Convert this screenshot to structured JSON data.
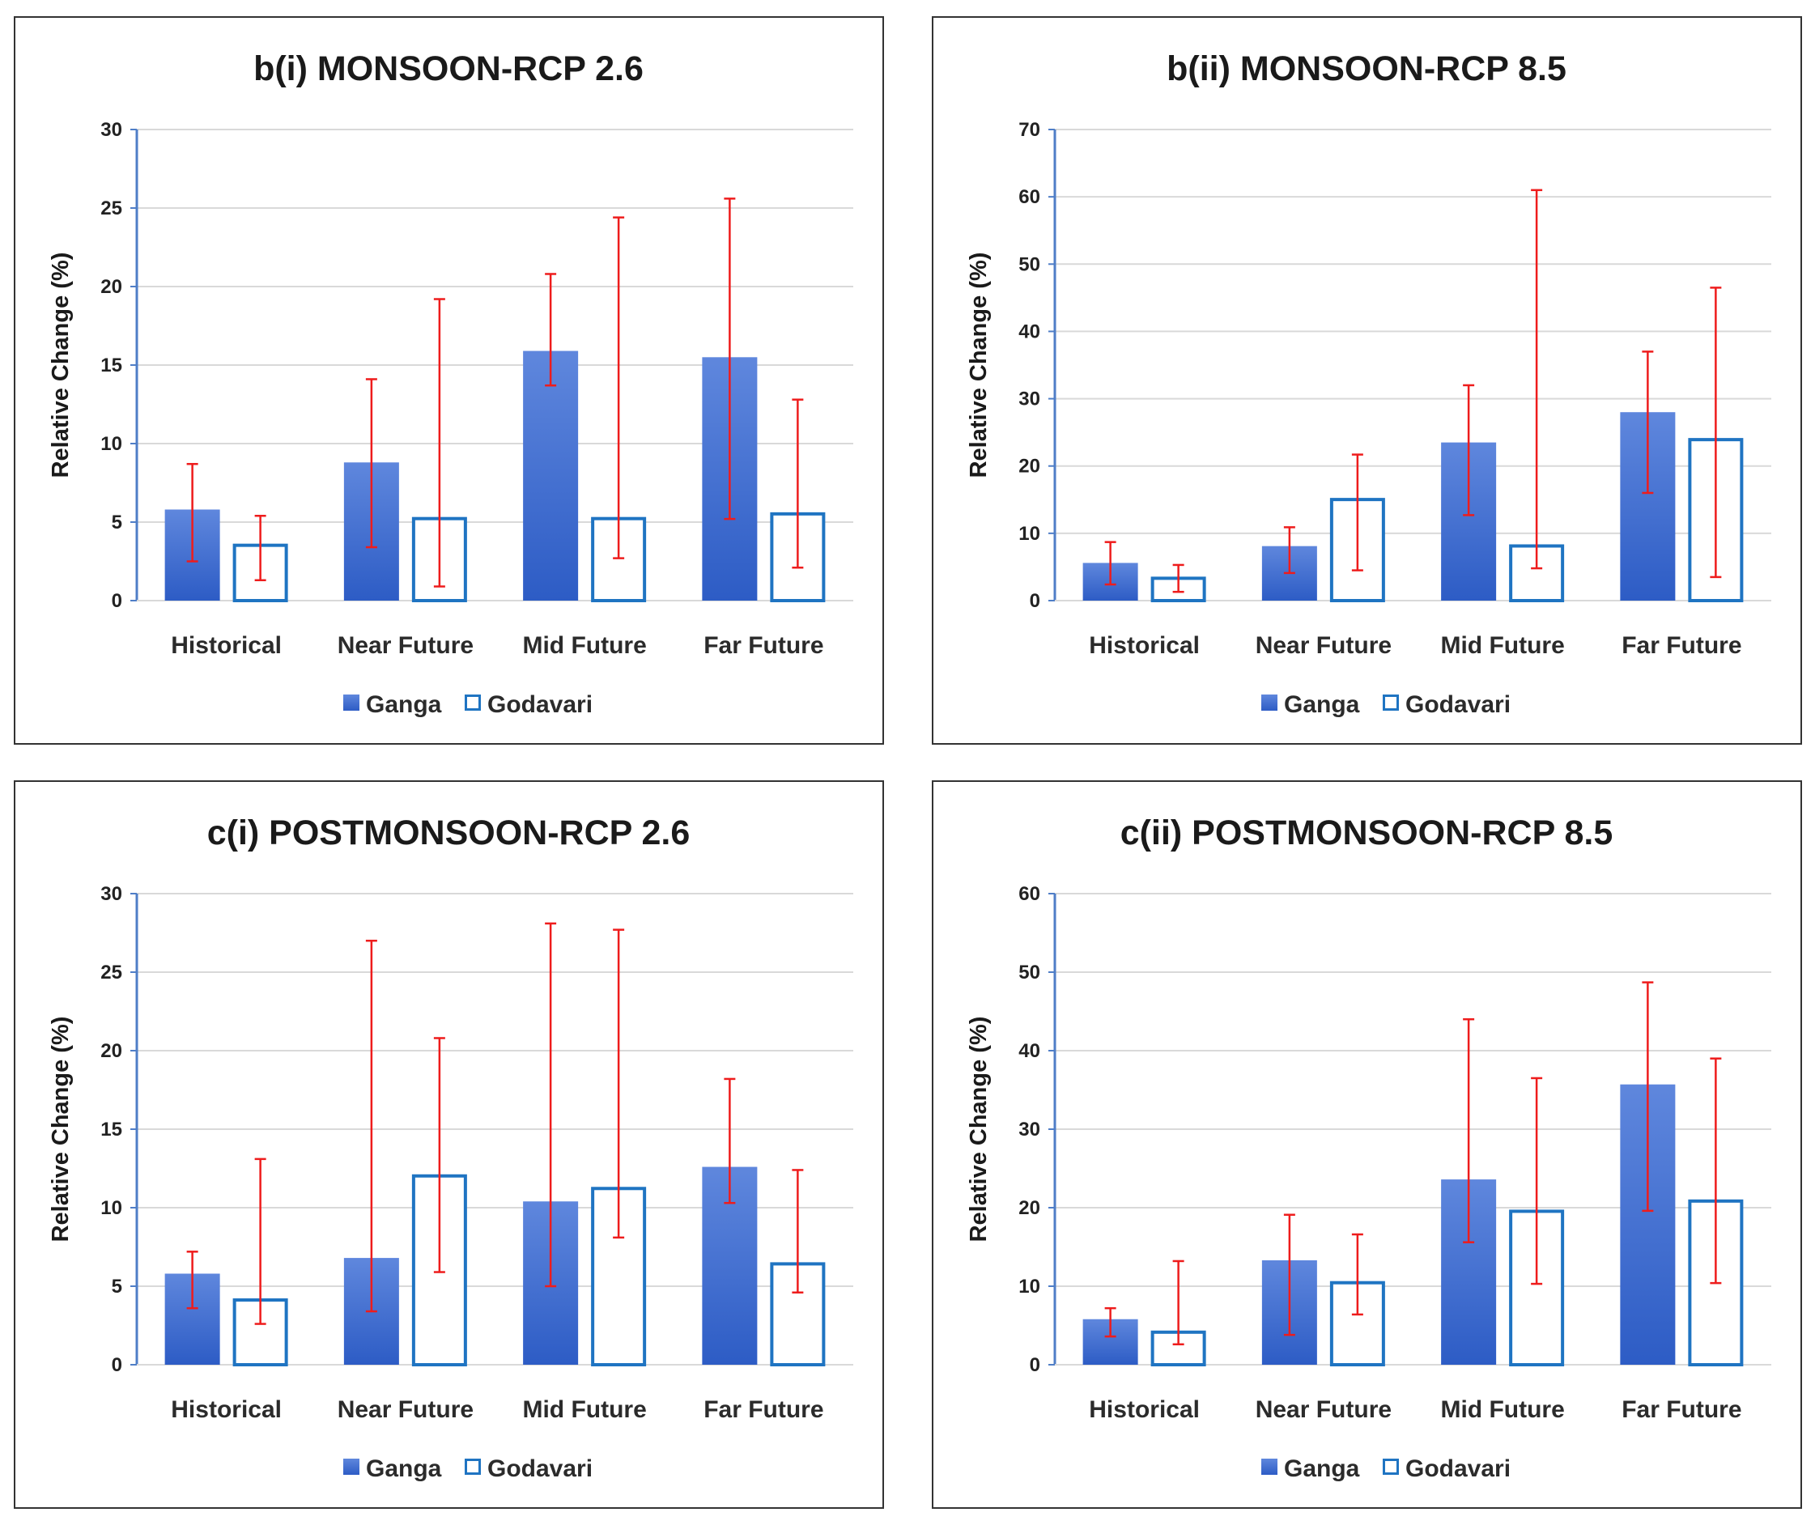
{
  "colors": {
    "ganga_top": "#5f87dd",
    "ganga_bottom": "#2d5cc5",
    "godavari_stroke": "#1f74c2",
    "error_bar": "#ee1c1c",
    "grid": "#d9d9d9",
    "axis": "#4f7ec7"
  },
  "chart_data": [
    {
      "type": "bar",
      "title": "b(i)  MONSOON-RCP 2.6",
      "ylabel": "Relative Change (%)",
      "xlabel": "",
      "ylim": [
        0,
        30
      ],
      "yticks": [
        0,
        5,
        10,
        15,
        20,
        25,
        30
      ],
      "categories": [
        "Historical",
        "Near Future",
        "Mid Future",
        "Far Future"
      ],
      "series": [
        {
          "name": "Ganga",
          "style": "filled",
          "values": [
            5.8,
            8.8,
            15.9,
            15.5
          ],
          "err_low": [
            2.5,
            3.4,
            13.7,
            5.2
          ],
          "err_high": [
            8.7,
            14.1,
            20.8,
            25.6
          ]
        },
        {
          "name": "Godavari",
          "style": "outline",
          "values": [
            3.6,
            5.3,
            5.3,
            5.6
          ],
          "err_low": [
            1.3,
            0.9,
            2.7,
            2.1
          ],
          "err_high": [
            5.4,
            19.2,
            24.4,
            12.8
          ]
        }
      ],
      "legend": [
        "Ganga",
        "Godavari"
      ],
      "legend_position": "bottom",
      "grid": true
    },
    {
      "type": "bar",
      "title": "b(ii)  MONSOON-RCP 8.5",
      "ylabel": "Relative Change (%)",
      "xlabel": "",
      "ylim": [
        0,
        70
      ],
      "yticks": [
        0,
        10,
        20,
        30,
        40,
        50,
        60,
        70
      ],
      "categories": [
        "Historical",
        "Near Future",
        "Mid Future",
        "Far Future"
      ],
      "series": [
        {
          "name": "Ganga",
          "style": "filled",
          "values": [
            5.6,
            8.1,
            23.5,
            28.0
          ],
          "err_low": [
            2.4,
            4.1,
            12.7,
            16.0
          ],
          "err_high": [
            8.7,
            10.9,
            32.0,
            37.0
          ]
        },
        {
          "name": "Godavari",
          "style": "outline",
          "values": [
            3.5,
            15.2,
            8.3,
            24.1
          ],
          "err_low": [
            1.3,
            4.5,
            4.8,
            3.5
          ],
          "err_high": [
            5.3,
            21.7,
            61.0,
            46.5
          ]
        }
      ],
      "legend": [
        "Ganga",
        "Godavari"
      ],
      "legend_position": "bottom",
      "grid": true
    },
    {
      "type": "bar",
      "title": "c(i)  POSTMONSOON-RCP 2.6",
      "ylabel": "Relative Change (%)",
      "xlabel": "",
      "ylim": [
        0,
        30
      ],
      "yticks": [
        0,
        5,
        10,
        15,
        20,
        25,
        30
      ],
      "categories": [
        "Historical",
        "Near Future",
        "Mid Future",
        "Far Future"
      ],
      "series": [
        {
          "name": "Ganga",
          "style": "filled",
          "values": [
            5.8,
            6.8,
            10.4,
            12.6
          ],
          "err_low": [
            3.6,
            3.4,
            5.0,
            10.3
          ],
          "err_high": [
            7.2,
            27.0,
            28.1,
            18.2
          ]
        },
        {
          "name": "Godavari",
          "style": "outline",
          "values": [
            4.2,
            12.1,
            11.3,
            6.5
          ],
          "err_low": [
            2.6,
            5.9,
            8.1,
            4.6
          ],
          "err_high": [
            13.1,
            20.8,
            27.7,
            12.4
          ]
        }
      ],
      "legend": [
        "Ganga",
        "Godavari"
      ],
      "legend_position": "bottom",
      "grid": true
    },
    {
      "type": "bar",
      "title": "c(ii)  POSTMONSOON-RCP 8.5",
      "ylabel": "Relative Change (%)",
      "xlabel": "",
      "ylim": [
        0,
        60
      ],
      "yticks": [
        0,
        10,
        20,
        30,
        40,
        50,
        60
      ],
      "categories": [
        "Historical",
        "Near Future",
        "Mid Future",
        "Far Future"
      ],
      "series": [
        {
          "name": "Ganga",
          "style": "filled",
          "values": [
            5.8,
            13.3,
            23.6,
            35.7
          ],
          "err_low": [
            3.6,
            3.8,
            15.6,
            19.6
          ],
          "err_high": [
            7.2,
            19.1,
            44.0,
            48.7
          ]
        },
        {
          "name": "Godavari",
          "style": "outline",
          "values": [
            4.3,
            10.6,
            19.7,
            21.0
          ],
          "err_low": [
            2.6,
            6.4,
            10.3,
            10.4
          ],
          "err_high": [
            13.2,
            16.6,
            36.5,
            39.0
          ]
        }
      ],
      "legend": [
        "Ganga",
        "Godavari"
      ],
      "legend_position": "bottom",
      "grid": true
    }
  ]
}
